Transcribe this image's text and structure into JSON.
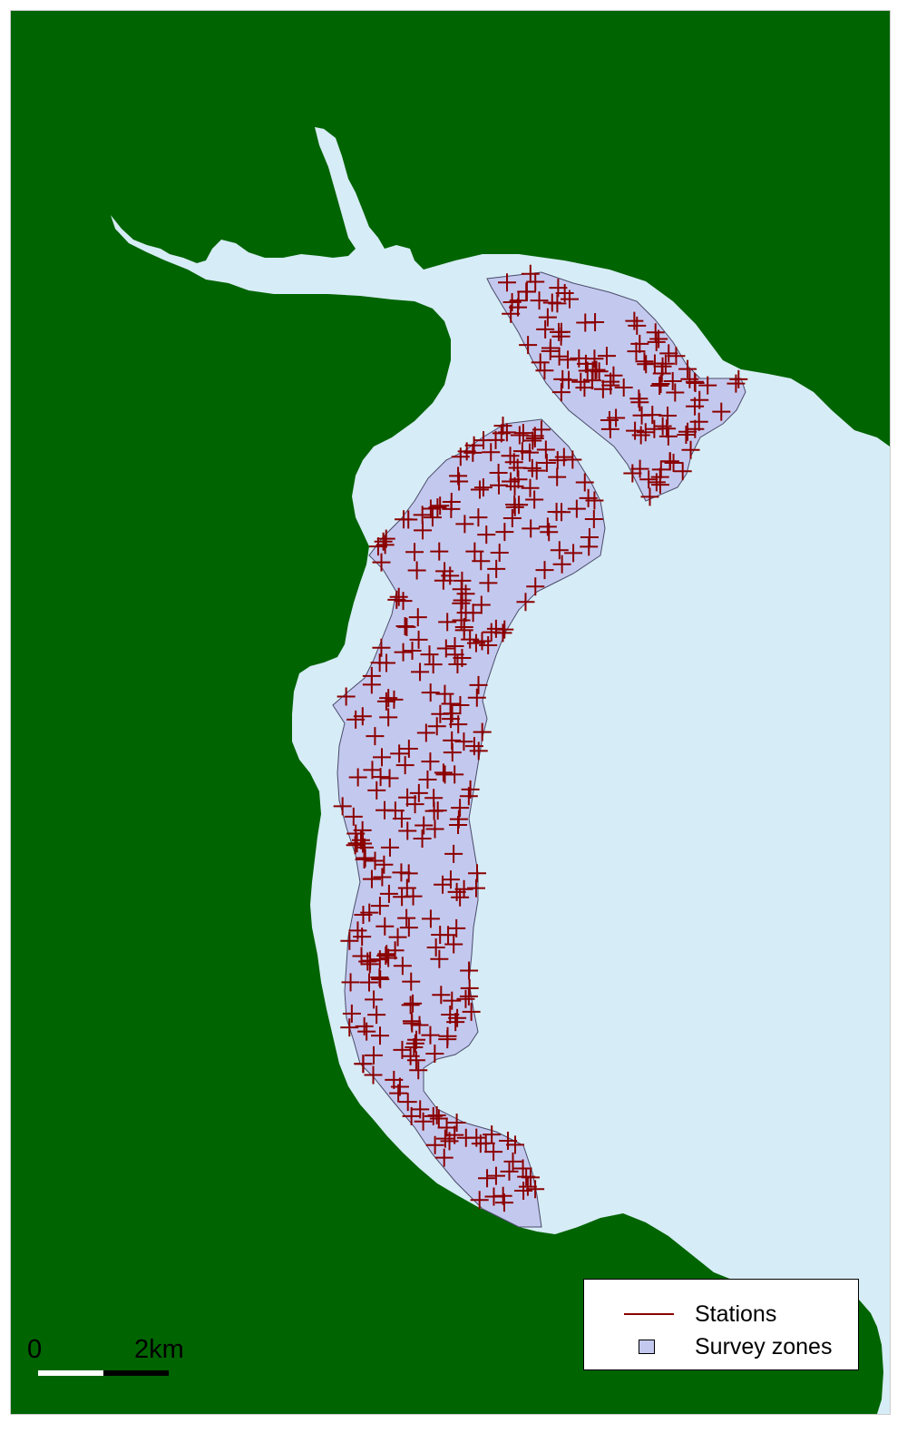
{
  "map": {
    "colors": {
      "land": "#006400",
      "water": "#d6ecf6",
      "zone_fill": "#c3c9ee",
      "zone_stroke": "#4a4a6a",
      "station": "#8b0000"
    }
  },
  "legend": {
    "items": [
      {
        "label": "Stations",
        "symbol": "line"
      },
      {
        "label": "Survey zones",
        "symbol": "square"
      }
    ]
  },
  "scalebar": {
    "start_label": "0",
    "end_label": "2km"
  }
}
